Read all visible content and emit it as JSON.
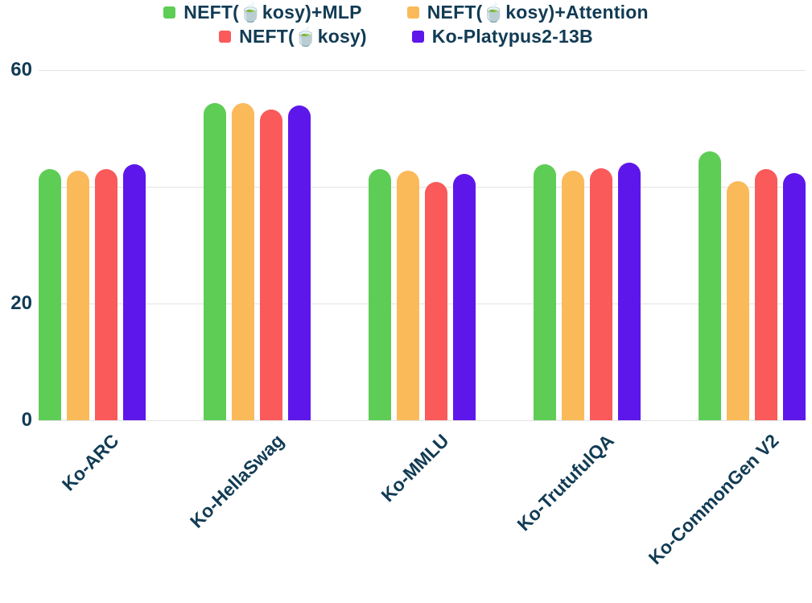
{
  "chart_data": {
    "type": "bar",
    "title": "",
    "xlabel": "",
    "ylabel": "",
    "categories": [
      "Ko-ARC",
      "Ko-HellaSwag",
      "Ko-MMLU",
      "Ko-TrutufulQA",
      "Ko-CommonGen V2"
    ],
    "series": [
      {
        "name": "NEFT(🍵kosy)+MLP",
        "color": "#5ECD56",
        "values": [
          43.0,
          54.3,
          43.0,
          43.8,
          46.1
        ]
      },
      {
        "name": "NEFT(🍵kosy)+Attention",
        "color": "#FBBA59",
        "values": [
          42.8,
          54.3,
          42.7,
          42.8,
          40.9
        ]
      },
      {
        "name": "NEFT(🍵kosy)",
        "color": "#FA5A5A",
        "values": [
          43.0,
          53.3,
          40.8,
          43.2,
          43.1
        ]
      },
      {
        "name": "Ko-Platypus2-13B",
        "color": "#5E17EB",
        "values": [
          43.9,
          54.0,
          42.2,
          44.1,
          42.4
        ]
      }
    ],
    "ylim": [
      0,
      60
    ],
    "yticks": [
      {
        "value": 0,
        "label": "0"
      },
      {
        "value": 20,
        "label": "20"
      },
      {
        "value": 40,
        "label": ""
      },
      {
        "value": 60,
        "label": "60"
      }
    ],
    "grid": true,
    "legend_position": "top",
    "x_tick_rotation_deg": 45,
    "text_color": "#113B54",
    "grid_color": "#E3E3E3",
    "background": "#FFFFFF"
  }
}
